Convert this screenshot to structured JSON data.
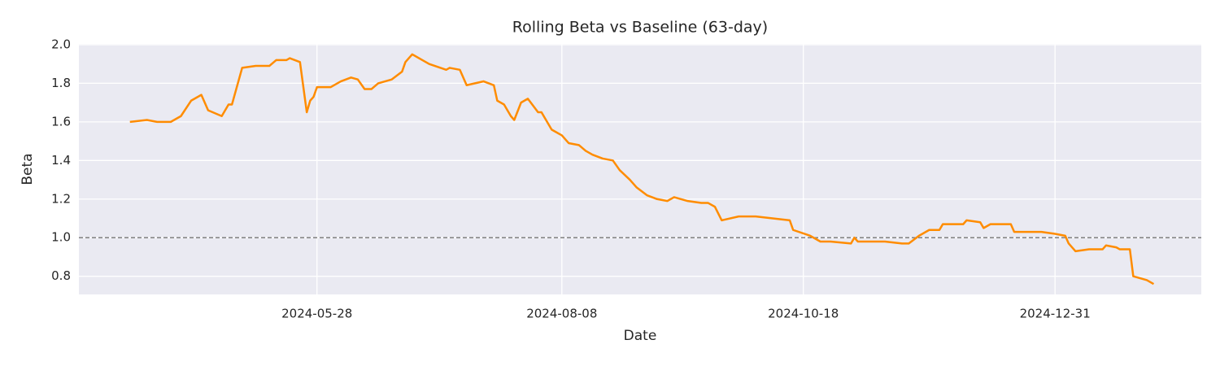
{
  "chart_data": {
    "type": "line",
    "title": "Rolling Beta vs Baseline (63-day)",
    "x_label": "Date",
    "y_label": "Beta",
    "x": [
      "2024-04-03",
      "2024-04-08",
      "2024-04-11",
      "2024-04-15",
      "2024-04-18",
      "2024-04-21",
      "2024-04-24",
      "2024-04-26",
      "2024-04-30",
      "2024-05-02",
      "2024-05-03",
      "2024-05-06",
      "2024-05-10",
      "2024-05-14",
      "2024-05-16",
      "2024-05-19",
      "2024-05-20",
      "2024-05-23",
      "2024-05-25",
      "2024-05-26",
      "2024-05-27",
      "2024-05-28",
      "2024-06-01",
      "2024-06-04",
      "2024-06-07",
      "2024-06-09",
      "2024-06-11",
      "2024-06-13",
      "2024-06-15",
      "2024-06-19",
      "2024-06-22",
      "2024-06-23",
      "2024-06-25",
      "2024-06-28",
      "2024-06-30",
      "2024-07-05",
      "2024-07-06",
      "2024-07-09",
      "2024-07-11",
      "2024-07-16",
      "2024-07-19",
      "2024-07-20",
      "2024-07-22",
      "2024-07-24",
      "2024-07-25",
      "2024-07-27",
      "2024-07-29",
      "2024-08-01",
      "2024-08-02",
      "2024-08-05",
      "2024-08-08",
      "2024-08-10",
      "2024-08-13",
      "2024-08-15",
      "2024-08-17",
      "2024-08-20",
      "2024-08-23",
      "2024-08-25",
      "2024-08-28",
      "2024-08-30",
      "2024-09-02",
      "2024-09-05",
      "2024-09-08",
      "2024-09-10",
      "2024-09-14",
      "2024-09-18",
      "2024-09-20",
      "2024-09-22",
      "2024-09-24",
      "2024-09-29",
      "2024-10-04",
      "2024-10-09",
      "2024-10-14",
      "2024-10-15",
      "2024-10-20",
      "2024-10-23",
      "2024-10-26",
      "2024-11-01",
      "2024-11-02",
      "2024-11-03",
      "2024-11-07",
      "2024-11-11",
      "2024-11-16",
      "2024-11-18",
      "2024-11-21",
      "2024-11-24",
      "2024-11-27",
      "2024-11-28",
      "2024-12-04",
      "2024-12-05",
      "2024-12-09",
      "2024-12-10",
      "2024-12-12",
      "2024-12-18",
      "2024-12-19",
      "2024-12-23",
      "2024-12-27",
      "2024-12-31",
      "2025-01-03",
      "2025-01-04",
      "2025-01-06",
      "2025-01-10",
      "2025-01-14",
      "2025-01-15",
      "2025-01-18",
      "2025-01-19",
      "2025-01-22",
      "2025-01-23",
      "2025-01-27",
      "2025-01-29"
    ],
    "values": [
      1.6,
      1.61,
      1.6,
      1.6,
      1.63,
      1.71,
      1.74,
      1.66,
      1.63,
      1.69,
      1.69,
      1.88,
      1.89,
      1.89,
      1.92,
      1.92,
      1.93,
      1.91,
      1.65,
      1.71,
      1.73,
      1.78,
      1.78,
      1.81,
      1.83,
      1.82,
      1.77,
      1.77,
      1.8,
      1.82,
      1.86,
      1.91,
      1.95,
      1.92,
      1.9,
      1.87,
      1.88,
      1.87,
      1.79,
      1.81,
      1.79,
      1.71,
      1.69,
      1.63,
      1.61,
      1.7,
      1.72,
      1.65,
      1.65,
      1.56,
      1.53,
      1.49,
      1.48,
      1.45,
      1.43,
      1.41,
      1.4,
      1.35,
      1.3,
      1.26,
      1.22,
      1.2,
      1.19,
      1.21,
      1.19,
      1.18,
      1.18,
      1.16,
      1.09,
      1.11,
      1.11,
      1.1,
      1.09,
      1.04,
      1.01,
      0.98,
      0.98,
      0.97,
      1.0,
      0.98,
      0.98,
      0.98,
      0.97,
      0.97,
      1.01,
      1.04,
      1.04,
      1.07,
      1.07,
      1.09,
      1.08,
      1.05,
      1.07,
      1.07,
      1.03,
      1.03,
      1.03,
      1.02,
      1.01,
      0.97,
      0.93,
      0.94,
      0.94,
      0.96,
      0.95,
      0.94,
      0.94,
      0.8,
      0.78,
      0.76
    ],
    "color": "#ff8c00",
    "reference_line": {
      "value": 1.0,
      "color": "#808080",
      "style": "dashed"
    },
    "xlim": [
      "2024-03-19",
      "2025-02-12"
    ],
    "xticks": [
      "2024-05-28",
      "2024-08-08",
      "2024-10-18",
      "2024-12-31"
    ],
    "ylim": [
      0.706,
      2.004
    ],
    "yticks": [
      0.8,
      {
        "value": 1,
        "label": "1.0"
      },
      1.2,
      1.4,
      1.6,
      1.8,
      {
        "value": 2,
        "label": "2.0"
      }
    ],
    "grid": true
  }
}
